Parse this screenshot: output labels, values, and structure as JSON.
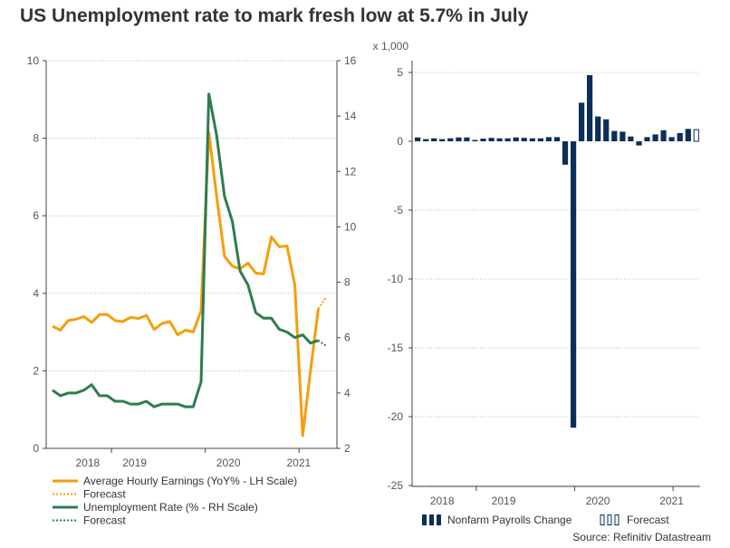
{
  "title": "US Unemployment rate to mark fresh low at 5.7% in July",
  "source": "Source: Refinitiv Datastream",
  "colors": {
    "earnings": "#F59E0B",
    "unemployment": "#2E7D4F",
    "payrolls": "#0B2F5B",
    "grid": "#BBBBBB",
    "axis": "#444444"
  },
  "chart_data": [
    {
      "type": "line",
      "title": "",
      "x_tick_labels": [
        "2018",
        "2019",
        "2020",
        "2021"
      ],
      "left_axis": {
        "label": "Average Hourly Earnings (YoY% - LH Scale)",
        "ylim": [
          0,
          10
        ],
        "ticks": [
          0,
          2,
          4,
          6,
          8,
          10
        ]
      },
      "right_axis": {
        "label": "Unemployment Rate (% - RH Scale)",
        "ylim": [
          2,
          16
        ],
        "ticks": [
          2,
          4,
          6,
          8,
          10,
          12,
          14,
          16
        ]
      },
      "series": [
        {
          "name": "Average Hourly Earnings (YoY% - LH Scale)",
          "axis": "left",
          "style": "solid",
          "values": [
            3.15,
            3.05,
            3.3,
            3.33,
            3.4,
            3.25,
            3.45,
            3.45,
            3.3,
            3.27,
            3.38,
            3.35,
            3.43,
            3.07,
            3.22,
            3.27,
            2.93,
            3.05,
            3.0,
            3.55,
            8.15,
            6.5,
            4.95,
            4.7,
            4.63,
            4.78,
            4.52,
            4.5,
            5.45,
            5.2,
            5.22,
            4.22,
            0.33,
            2.0,
            3.6
          ]
        },
        {
          "name": "Forecast",
          "axis": "left",
          "style": "dotted",
          "start_index": 34,
          "values": [
            3.6,
            3.9
          ]
        },
        {
          "name": "Unemployment Rate (% - RH Scale)",
          "axis": "right",
          "style": "solid",
          "values": [
            4.1,
            3.9,
            4.0,
            4.0,
            4.1,
            4.3,
            3.9,
            3.9,
            3.7,
            3.7,
            3.6,
            3.6,
            3.7,
            3.5,
            3.6,
            3.6,
            3.6,
            3.5,
            3.5,
            4.4,
            14.8,
            13.3,
            11.1,
            10.2,
            8.4,
            7.9,
            6.9,
            6.7,
            6.7,
            6.3,
            6.2,
            6.0,
            6.1,
            5.8,
            5.9
          ]
        },
        {
          "name": "Forecast",
          "axis": "right",
          "style": "dotted",
          "start_index": 34,
          "values": [
            5.9,
            5.7
          ]
        }
      ]
    },
    {
      "type": "bar",
      "title": "",
      "unit_label": "x 1,000",
      "x_tick_labels": [
        "2018",
        "2019",
        "2020",
        "2021"
      ],
      "ylim": [
        -25,
        7
      ],
      "ticks": [
        5,
        0,
        -5,
        -10,
        -15,
        -20,
        -25
      ],
      "series": [
        {
          "name": "Nonfarm Payrolls Change",
          "values": [
            0.28,
            0.16,
            0.22,
            0.16,
            0.22,
            0.28,
            0.28,
            0.1,
            0.2,
            0.25,
            0.22,
            0.22,
            0.28,
            0.25,
            0.22,
            0.22,
            0.3,
            0.3,
            -1.7,
            -20.8,
            2.8,
            4.8,
            1.8,
            1.6,
            0.75,
            0.7,
            0.35,
            -0.3,
            0.3,
            0.5,
            0.8,
            0.3,
            0.6,
            0.9
          ]
        },
        {
          "name": "Forecast",
          "values": [
            0.85
          ]
        }
      ]
    }
  ]
}
